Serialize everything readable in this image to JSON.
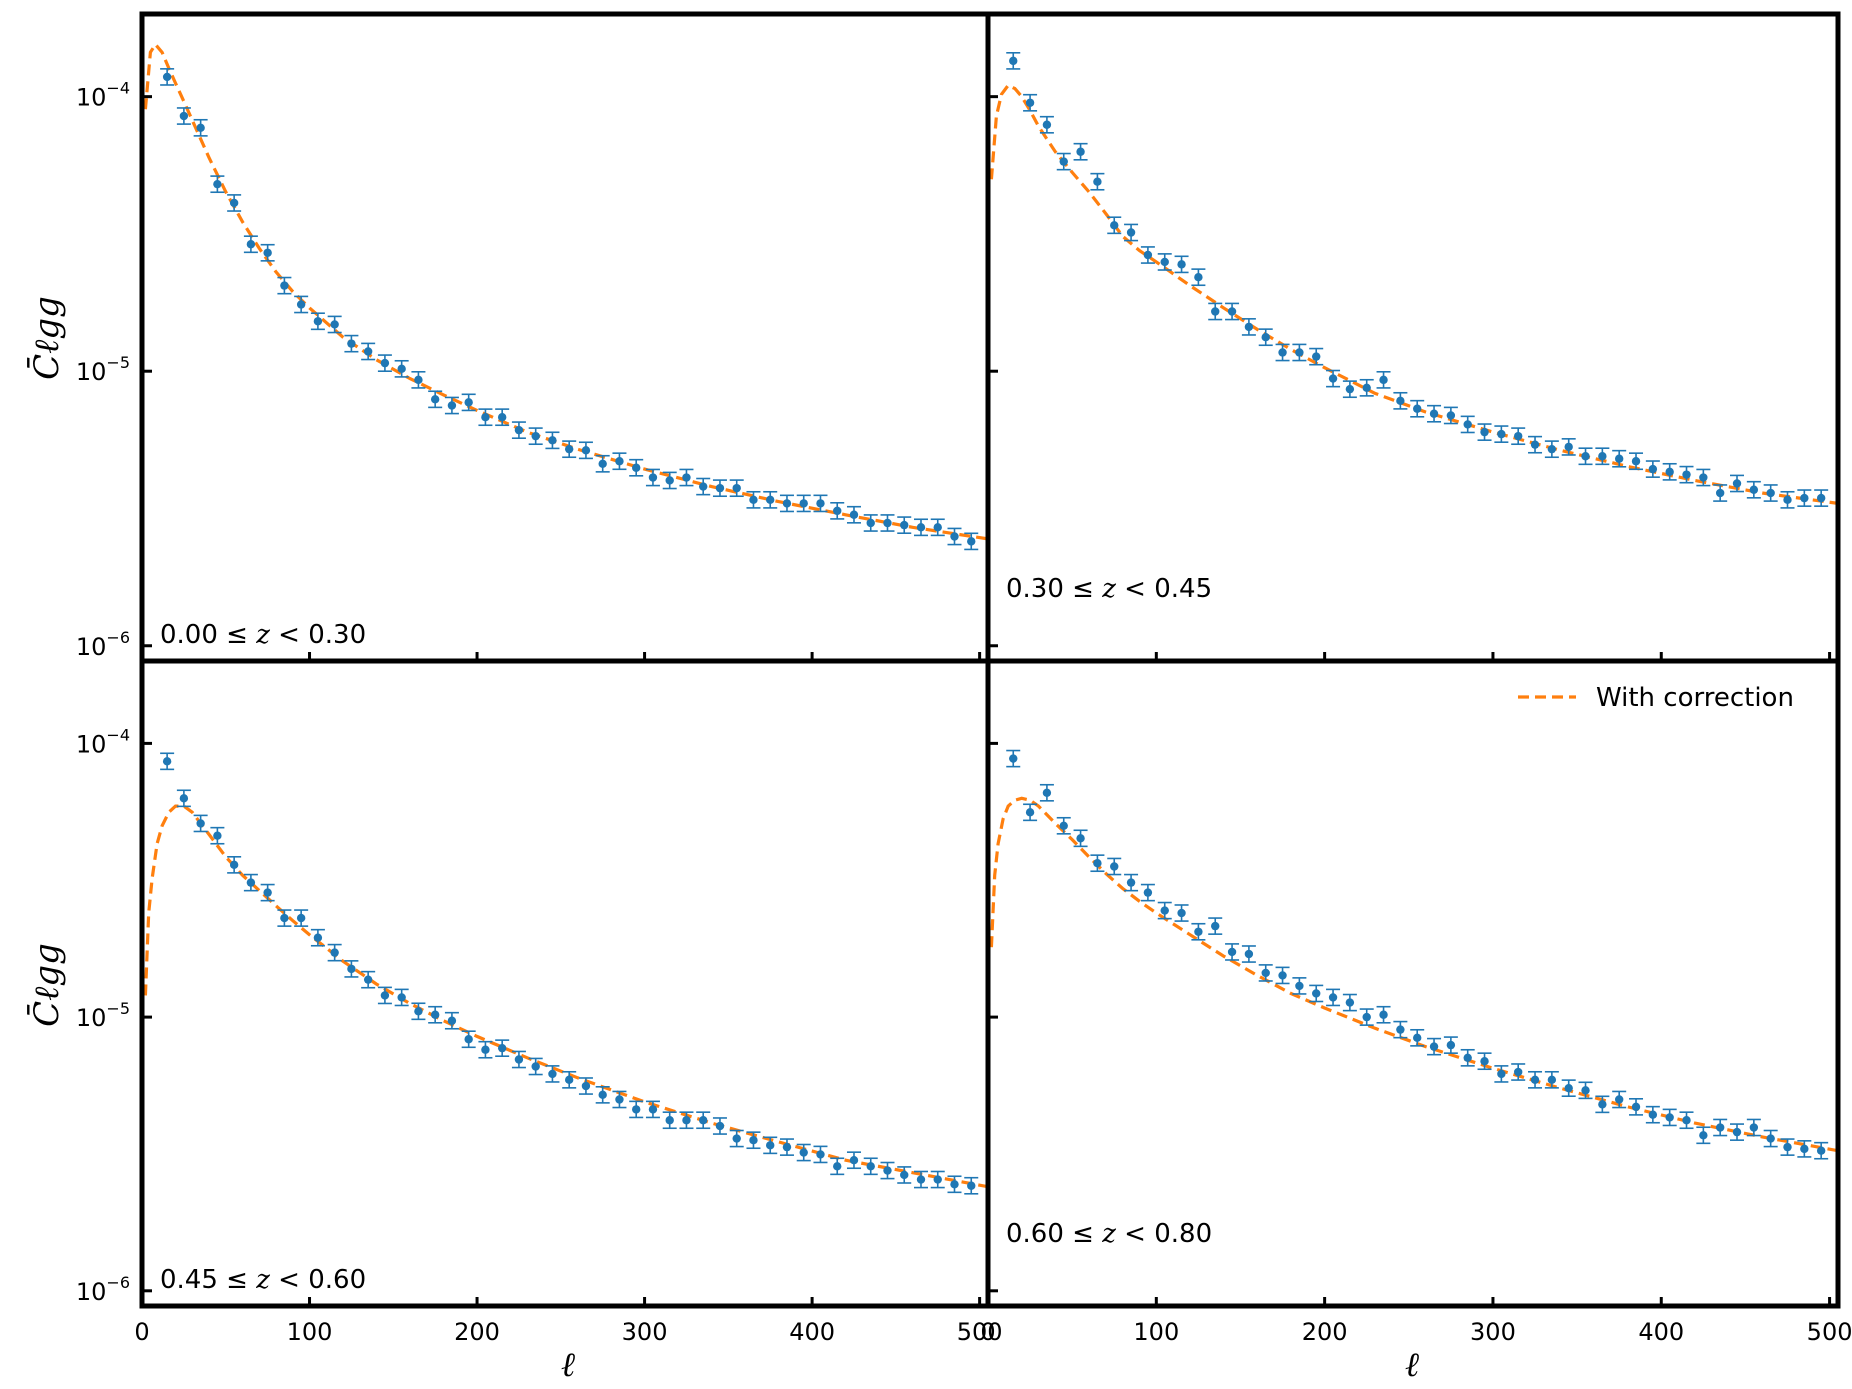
{
  "legend": {
    "label": "With correction",
    "color": "#ff7f0e"
  },
  "colors": {
    "data": "#1f77b4",
    "model": "#ff7f0e"
  },
  "axes": {
    "xlabel": "ℓ",
    "ylabel": "C̄ℓgg",
    "xlim": [
      0,
      505
    ],
    "ylim": [
      8.8e-07,
      0.0002
    ],
    "yscale": "log",
    "xticks": [
      0,
      100,
      200,
      300,
      400,
      500
    ],
    "yticks": [
      {
        "base": "10",
        "exp": "−6"
      },
      {
        "base": "10",
        "exp": "−5"
      },
      {
        "base": "10",
        "exp": "−4"
      }
    ]
  },
  "chart_data": [
    {
      "type": "scatter",
      "label": "0.00  ≤ z <  0.30",
      "label_parts": {
        "low": "0.00",
        "high": "0.30",
        "var": "z"
      },
      "x": [
        15,
        25,
        35,
        45,
        55,
        65,
        75,
        85,
        95,
        105,
        115,
        125,
        135,
        145,
        155,
        165,
        175,
        185,
        195,
        205,
        215,
        225,
        235,
        245,
        255,
        265,
        275,
        285,
        295,
        305,
        315,
        325,
        335,
        345,
        355,
        365,
        375,
        385,
        395,
        405,
        415,
        425,
        435,
        445,
        455,
        465,
        475,
        485,
        495
      ],
      "y": [
        0.000118,
        8.5e-05,
        7.7e-05,
        4.8e-05,
        4.1e-05,
        2.9e-05,
        2.7e-05,
        2.05e-05,
        1.75e-05,
        1.52e-05,
        1.48e-05,
        1.26e-05,
        1.18e-05,
        1.07e-05,
        1.02e-05,
        9.3e-06,
        7.9e-06,
        7.5e-06,
        7.7e-06,
        6.8e-06,
        6.8e-06,
        6.1e-06,
        5.8e-06,
        5.6e-06,
        5.2e-06,
        5.15e-06,
        4.6e-06,
        4.7e-06,
        4.45e-06,
        4.1e-06,
        4e-06,
        4.1e-06,
        3.8e-06,
        3.75e-06,
        3.75e-06,
        3.4e-06,
        3.4e-06,
        3.3e-06,
        3.3e-06,
        3.3e-06,
        3.1e-06,
        3e-06,
        2.8e-06,
        2.8e-06,
        2.75e-06,
        2.7e-06,
        2.7e-06,
        2.5e-06,
        2.4e-06
      ],
      "model": {
        "x": [
          2,
          5,
          8,
          12,
          16,
          20,
          25,
          30,
          40,
          50,
          60,
          70,
          80,
          90,
          100,
          120,
          140,
          160,
          180,
          200,
          230,
          260,
          300,
          340,
          380,
          420,
          460,
          505
        ],
        "y": [
          9e-05,
          0.000145,
          0.000155,
          0.000145,
          0.000127,
          0.000112,
          9.6e-05,
          8.2e-05,
          6e-05,
          4.5e-05,
          3.5e-05,
          2.8e-05,
          2.3e-05,
          1.95e-05,
          1.7e-05,
          1.33e-05,
          1.1e-05,
          9.4e-06,
          8.2e-06,
          7.2e-06,
          6e-06,
          5.2e-06,
          4.4e-06,
          3.8e-06,
          3.35e-06,
          3e-06,
          2.7e-06,
          2.45e-06
        ]
      }
    },
    {
      "type": "scatter",
      "label": "0.30  ≤ z <  0.45",
      "label_parts": {
        "low": "0.30",
        "high": "0.45",
        "var": "z"
      },
      "x": [
        15,
        25,
        35,
        45,
        55,
        65,
        75,
        85,
        95,
        105,
        115,
        125,
        135,
        145,
        155,
        165,
        175,
        185,
        195,
        205,
        215,
        225,
        235,
        245,
        255,
        265,
        275,
        285,
        295,
        305,
        315,
        325,
        335,
        345,
        355,
        365,
        375,
        385,
        395,
        405,
        415,
        425,
        435,
        445,
        455,
        465,
        475,
        485,
        495
      ],
      "y": [
        0.000135,
        9.5e-05,
        7.9e-05,
        5.8e-05,
        6.3e-05,
        4.9e-05,
        3.4e-05,
        3.2e-05,
        2.65e-05,
        2.5e-05,
        2.45e-05,
        2.2e-05,
        1.65e-05,
        1.65e-05,
        1.45e-05,
        1.33e-05,
        1.17e-05,
        1.17e-05,
        1.13e-05,
        9.4e-06,
        8.6e-06,
        8.7e-06,
        9.3e-06,
        7.8e-06,
        7.3e-06,
        7e-06,
        6.9e-06,
        6.4e-06,
        6e-06,
        5.9e-06,
        5.8e-06,
        5.4e-06,
        5.2e-06,
        5.3e-06,
        4.9e-06,
        4.9e-06,
        4.8e-06,
        4.7e-06,
        4.4e-06,
        4.3e-06,
        4.2e-06,
        4.1e-06,
        3.6e-06,
        3.9e-06,
        3.7e-06,
        3.6e-06,
        3.4e-06,
        3.45e-06,
        3.45e-06
      ],
      "model": {
        "x": [
          2,
          5,
          8,
          12,
          16,
          20,
          25,
          30,
          40,
          50,
          60,
          70,
          80,
          90,
          100,
          120,
          140,
          160,
          180,
          200,
          230,
          260,
          300,
          340,
          380,
          420,
          460,
          505
        ],
        "y": [
          5e-05,
          8.5e-05,
          0.000102,
          0.00011,
          0.000107,
          0.0001,
          8.9e-05,
          7.8e-05,
          6.3e-05,
          5.3e-05,
          4.5e-05,
          3.75e-05,
          3.1e-05,
          2.75e-05,
          2.5e-05,
          2.05e-05,
          1.7e-05,
          1.42e-05,
          1.2e-05,
          1.03e-05,
          8.3e-06,
          7.1e-06,
          6e-06,
          5.15e-06,
          4.5e-06,
          4e-06,
          3.6e-06,
          3.3e-06
        ]
      }
    },
    {
      "type": "scatter",
      "label": "0.45  ≤ z <  0.60",
      "label_parts": {
        "low": "0.45",
        "high": "0.60",
        "var": "z"
      },
      "x": [
        15,
        25,
        35,
        45,
        55,
        65,
        75,
        85,
        95,
        105,
        115,
        125,
        135,
        145,
        155,
        165,
        175,
        185,
        195,
        205,
        215,
        225,
        235,
        245,
        255,
        265,
        275,
        285,
        295,
        305,
        315,
        325,
        335,
        345,
        355,
        365,
        375,
        385,
        395,
        405,
        415,
        425,
        435,
        445,
        455,
        465,
        475,
        485,
        495
      ],
      "y": [
        8.6e-05,
        6.3e-05,
        5.1e-05,
        4.6e-05,
        3.6e-05,
        3.1e-05,
        2.85e-05,
        2.3e-05,
        2.3e-05,
        1.95e-05,
        1.72e-05,
        1.5e-05,
        1.37e-05,
        1.2e-05,
        1.18e-05,
        1.05e-05,
        1.02e-05,
        9.7e-06,
        8.3e-06,
        7.6e-06,
        7.7e-06,
        7e-06,
        6.6e-06,
        6.2e-06,
        5.9e-06,
        5.6e-06,
        5.2e-06,
        5e-06,
        4.6e-06,
        4.6e-06,
        4.2e-06,
        4.2e-06,
        4.2e-06,
        4e-06,
        3.6e-06,
        3.55e-06,
        3.4e-06,
        3.35e-06,
        3.2e-06,
        3.15e-06,
        2.85e-06,
        3e-06,
        2.85e-06,
        2.75e-06,
        2.65e-06,
        2.55e-06,
        2.55e-06,
        2.45e-06,
        2.42e-06
      ],
      "model": {
        "x": [
          2,
          4,
          6,
          9,
          12,
          16,
          20,
          25,
          30,
          35,
          40,
          50,
          60,
          70,
          80,
          90,
          100,
          120,
          140,
          160,
          180,
          200,
          230,
          260,
          300,
          340,
          380,
          420,
          460,
          505
        ],
        "y": [
          1.2e-05,
          2.4e-05,
          3.2e-05,
          4.3e-05,
          5e-05,
          5.6e-05,
          5.9e-05,
          5.9e-05,
          5.6e-05,
          5.1e-05,
          4.65e-05,
          3.85e-05,
          3.3e-05,
          2.9e-05,
          2.55e-05,
          2.25e-05,
          2e-05,
          1.6e-05,
          1.32e-05,
          1.12e-05,
          9.7e-06,
          8.5e-06,
          7.1e-06,
          6e-06,
          4.9e-06,
          4.1e-06,
          3.5e-06,
          3e-06,
          2.7e-06,
          2.4e-06
        ]
      }
    },
    {
      "type": "scatter",
      "label": "0.60  ≤ z <  0.80",
      "label_parts": {
        "low": "0.60",
        "high": "0.80",
        "var": "z"
      },
      "x": [
        15,
        25,
        35,
        45,
        55,
        65,
        75,
        85,
        95,
        105,
        115,
        125,
        135,
        145,
        155,
        165,
        175,
        185,
        195,
        205,
        215,
        225,
        235,
        245,
        255,
        265,
        275,
        285,
        295,
        305,
        315,
        325,
        335,
        345,
        355,
        365,
        375,
        385,
        395,
        405,
        415,
        425,
        435,
        445,
        455,
        465,
        475,
        485,
        495
      ],
      "y": [
        8.8e-05,
        5.6e-05,
        6.6e-05,
        5e-05,
        4.5e-05,
        3.65e-05,
        3.55e-05,
        3.1e-05,
        2.85e-05,
        2.45e-05,
        2.4e-05,
        2.05e-05,
        2.15e-05,
        1.73e-05,
        1.7e-05,
        1.45e-05,
        1.42e-05,
        1.3e-05,
        1.22e-05,
        1.18e-05,
        1.13e-05,
        1e-05,
        1.02e-05,
        9e-06,
        8.4e-06,
        7.8e-06,
        7.9e-06,
        7.1e-06,
        6.9e-06,
        6.2e-06,
        6.3e-06,
        5.9e-06,
        5.9e-06,
        5.5e-06,
        5.4e-06,
        4.8e-06,
        5e-06,
        4.7e-06,
        4.4e-06,
        4.3e-06,
        4.2e-06,
        3.7e-06,
        3.95e-06,
        3.8e-06,
        3.95e-06,
        3.6e-06,
        3.35e-06,
        3.3e-06,
        3.25e-06
      ],
      "model": {
        "x": [
          2,
          4,
          6,
          9,
          12,
          16,
          20,
          25,
          30,
          40,
          50,
          60,
          70,
          80,
          90,
          100,
          120,
          140,
          160,
          180,
          200,
          230,
          260,
          300,
          340,
          380,
          420,
          460,
          505
        ],
        "y": [
          1.8e-05,
          3.3e-05,
          4.3e-05,
          5.3e-05,
          5.9e-05,
          6.2e-05,
          6.3e-05,
          6.2e-05,
          5.9e-05,
          5.1e-05,
          4.45e-05,
          3.85e-05,
          3.35e-05,
          2.95e-05,
          2.65e-05,
          2.4e-05,
          2e-05,
          1.67e-05,
          1.42e-05,
          1.22e-05,
          1.08e-05,
          9.1e-06,
          7.8e-06,
          6.5e-06,
          5.5e-06,
          4.7e-06,
          4.1e-06,
          3.65e-06,
          3.25e-06
        ]
      }
    }
  ]
}
